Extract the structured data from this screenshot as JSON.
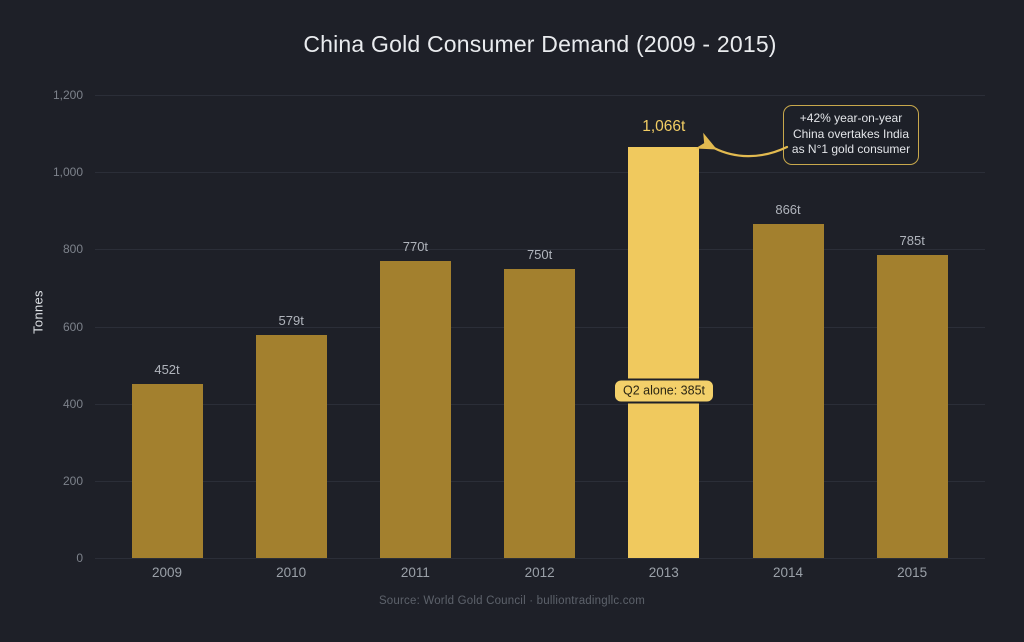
{
  "title": "China Gold Consumer Demand (2009 - 2015)",
  "chart_data": {
    "type": "bar",
    "title": "China Gold Consumer Demand (2009 - 2015)",
    "xlabel": "",
    "ylabel": "Tonnes",
    "categories": [
      "2009",
      "2010",
      "2011",
      "2012",
      "2013",
      "2014",
      "2015"
    ],
    "values": [
      452,
      579,
      770,
      750,
      1066,
      866,
      785
    ],
    "value_labels": [
      "452t",
      "579t",
      "770t",
      "750t",
      "1,066t",
      "866t",
      "785t"
    ],
    "highlight_index": 4,
    "ylim": [
      0,
      1200
    ],
    "yticks": [
      0,
      200,
      400,
      600,
      800,
      1000,
      1200
    ],
    "ytick_labels": [
      "0",
      "200",
      "400",
      "600",
      "800",
      "1,000",
      "1,200"
    ],
    "grid": true,
    "legend": false,
    "annotations": [
      {
        "kind": "callout-box",
        "target_category": "2013",
        "lines": [
          "+42% year-on-year",
          "China overtakes India",
          "as N°1 gold consumer"
        ]
      },
      {
        "kind": "on-bar-badge",
        "target_category": "2013",
        "text": "Q2 alone: 385t"
      }
    ]
  },
  "callout": {
    "line1": "+42% year-on-year",
    "line2": "China overtakes India",
    "line3": "as N°1 gold consumer"
  },
  "badge": {
    "text": "Q2 alone: 385t"
  },
  "footer": {
    "source": "Source: World Gold Council · bulliontradingllc.com"
  },
  "colors": {
    "background": "#1e2028",
    "bar": "#a3802e",
    "bar_highlight": "#f0c95e",
    "grid": "#2b2e38",
    "title_text": "#e9ebee",
    "tick_text": "#7d828b",
    "x_tick_text": "#9aa0a8",
    "value_text": "#b0b4bc",
    "highlight_value_text": "#f2cd64",
    "callout_border": "#c8a84c",
    "callout_text": "#e3e5e9",
    "arrow": "#e2ba50",
    "badge_bg": "#f3d06a",
    "badge_border": "#1e2028",
    "badge_text": "#2b2614",
    "source_text": "#5d626b",
    "axis_label_text": "#dfe2e6"
  }
}
